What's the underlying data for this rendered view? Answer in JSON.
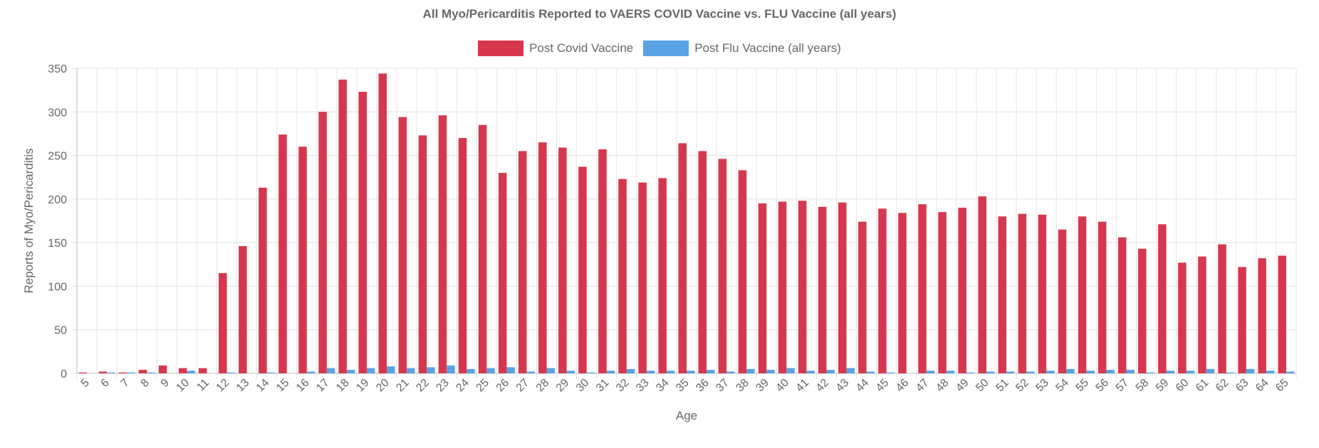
{
  "chart_data": {
    "type": "bar",
    "title": "All Myo/Pericarditis Reported to VAERS COVID Vaccine vs. FLU Vaccine (all years)",
    "xlabel": "Age",
    "ylabel": "Reports of Myo/Pericarditis",
    "ylim": [
      0,
      350
    ],
    "yticks": [
      0,
      50,
      100,
      150,
      200,
      250,
      300,
      350
    ],
    "grid": true,
    "legend_position": "top-center",
    "categories": [
      "5",
      "6",
      "7",
      "8",
      "9",
      "10",
      "11",
      "12",
      "13",
      "14",
      "15",
      "16",
      "17",
      "18",
      "19",
      "20",
      "21",
      "22",
      "23",
      "24",
      "25",
      "26",
      "27",
      "28",
      "29",
      "30",
      "31",
      "32",
      "33",
      "34",
      "35",
      "36",
      "37",
      "38",
      "39",
      "40",
      "41",
      "42",
      "43",
      "44",
      "45",
      "46",
      "47",
      "48",
      "49",
      "50",
      "51",
      "52",
      "53",
      "54",
      "55",
      "56",
      "57",
      "58",
      "59",
      "60",
      "61",
      "62",
      "63",
      "64",
      "65"
    ],
    "series": [
      {
        "name": "Post Covid Vaccine",
        "color": "#d7374d",
        "values": [
          1,
          2,
          1,
          4,
          9,
          6,
          6,
          115,
          146,
          213,
          274,
          260,
          300,
          337,
          323,
          344,
          294,
          273,
          296,
          270,
          285,
          230,
          255,
          265,
          259,
          237,
          257,
          223,
          219,
          224,
          264,
          255,
          246,
          233,
          195,
          197,
          198,
          191,
          196,
          174,
          189,
          184,
          194,
          185,
          190,
          203,
          180,
          183,
          182,
          165,
          180,
          174,
          156,
          143,
          171,
          127,
          134,
          148,
          122,
          132,
          135
        ]
      },
      {
        "name": "Post Flu Vaccine (all years)",
        "color": "#5aa2e6",
        "values": [
          0,
          1,
          1,
          1,
          0,
          3,
          0,
          1,
          0,
          1,
          0,
          2,
          6,
          4,
          6,
          8,
          6,
          7,
          9,
          5,
          6,
          7,
          2,
          6,
          3,
          1,
          3,
          5,
          3,
          3,
          3,
          4,
          2,
          5,
          4,
          6,
          3,
          4,
          6,
          2,
          1,
          0,
          3,
          3,
          1,
          2,
          2,
          2,
          3,
          5,
          3,
          4,
          4,
          1,
          3,
          3,
          5,
          1,
          5,
          3,
          2
        ]
      }
    ]
  }
}
